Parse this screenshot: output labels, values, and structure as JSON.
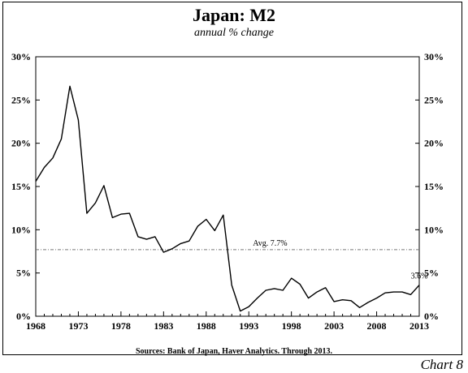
{
  "chart_data": {
    "type": "line",
    "title": "Japan: M2",
    "subtitle": "annual % change",
    "source": "Sources: Bank of Japan, Haver Analytics. Through 2013.",
    "chart_label": "Chart 8",
    "x": [
      1968,
      1969,
      1970,
      1971,
      1972,
      1973,
      1974,
      1975,
      1976,
      1977,
      1978,
      1979,
      1980,
      1981,
      1982,
      1983,
      1984,
      1985,
      1986,
      1987,
      1988,
      1989,
      1990,
      1991,
      1992,
      1993,
      1994,
      1995,
      1996,
      1997,
      1998,
      1999,
      2000,
      2001,
      2002,
      2003,
      2004,
      2005,
      2006,
      2007,
      2008,
      2009,
      2010,
      2011,
      2012,
      2013
    ],
    "series": [
      {
        "values": [
          15.6,
          17.2,
          18.3,
          20.5,
          26.6,
          22.7,
          11.9,
          13.1,
          15.1,
          11.4,
          11.8,
          11.9,
          9.2,
          8.9,
          9.2,
          7.4,
          7.8,
          8.4,
          8.7,
          10.4,
          11.2,
          9.9,
          11.7,
          3.6,
          0.6,
          1.1,
          2.1,
          3.0,
          3.2,
          3.0,
          4.4,
          3.7,
          2.1,
          2.8,
          3.3,
          1.7,
          1.9,
          1.8,
          1.0,
          1.6,
          2.1,
          2.7,
          2.8,
          2.8,
          2.5,
          3.6
        ],
        "color": "#000000"
      }
    ],
    "xlim": [
      1968,
      2013
    ],
    "ylim": [
      0,
      30
    ],
    "x_ticks": [
      "1968",
      "1973",
      "1978",
      "1983",
      "1988",
      "1993",
      "1998",
      "2003",
      "2008",
      "2013"
    ],
    "y_ticks": [
      "0%",
      "5%",
      "10%",
      "15%",
      "20%",
      "25%",
      "30%"
    ],
    "y_tick_values": [
      0,
      5,
      10,
      15,
      20,
      25,
      30
    ],
    "average": {
      "value": 7.7,
      "label": "Avg. 7.7%"
    },
    "end_label": "3.6%",
    "grid": false
  }
}
